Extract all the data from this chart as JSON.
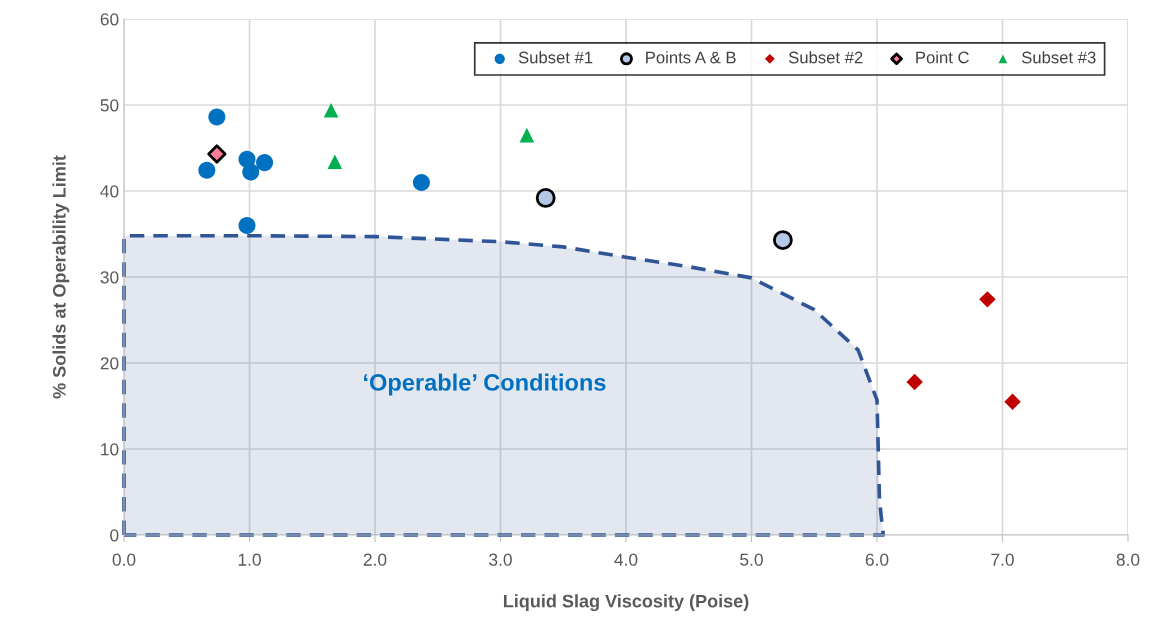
{
  "chart_data": {
    "type": "scatter",
    "xlabel": "Liquid Slag Viscosity (Poise)",
    "ylabel": "% Solids at Operability Limit",
    "xlim": [
      0,
      8
    ],
    "ylim": [
      0,
      60
    ],
    "xticks": [
      {
        "value": 0,
        "label": "0.0"
      },
      {
        "value": 1,
        "label": "1.0"
      },
      {
        "value": 2,
        "label": "2.0"
      },
      {
        "value": 3,
        "label": "3.0"
      },
      {
        "value": 4,
        "label": "4.0"
      },
      {
        "value": 5,
        "label": "5.0"
      },
      {
        "value": 6,
        "label": "6.0"
      },
      {
        "value": 7,
        "label": "7.0"
      },
      {
        "value": 8,
        "label": "8.0"
      }
    ],
    "yticks": [
      0,
      10,
      20,
      30,
      40,
      50,
      60
    ],
    "grid": true,
    "legend": "top right",
    "annotations": [
      "‘Operable’ Conditions"
    ],
    "series": [
      {
        "type": "area",
        "color": "#2f5597",
        "line_style": "dashed",
        "marker": "none",
        "x": [
          0,
          0,
          1,
          2,
          3,
          3.5,
          4,
          4.5,
          5,
          5.5,
          5.85,
          6,
          6.02,
          6.05
        ],
        "values": [
          0,
          34.8,
          34.8,
          34.7,
          34.1,
          33.5,
          32.3,
          31.2,
          29.9,
          26.2,
          21.5,
          15.7,
          4,
          0
        ]
      },
      {
        "name": "Subset #1",
        "color": "#0070c0",
        "marker": "circle",
        "x": [
          0.74,
          0.66,
          0.98,
          1.01,
          1.12,
          0.98,
          2.37
        ],
        "values": [
          48.6,
          42.4,
          43.7,
          42.2,
          43.3,
          36.0,
          41.0
        ]
      },
      {
        "name": "Points A & B",
        "color": "#b4c7e7",
        "marker": "circle",
        "x": [
          3.36,
          5.25
        ],
        "values": [
          39.2,
          34.3
        ]
      },
      {
        "name": "Subset #2",
        "color": "#c00000",
        "marker": "diamond",
        "x": [
          6.3,
          6.88,
          7.08
        ],
        "values": [
          17.8,
          27.4,
          15.5
        ]
      },
      {
        "name": "Point C",
        "color": "#ff7c99",
        "marker": "diamond",
        "x": [
          0.74
        ],
        "values": [
          44.3
        ]
      },
      {
        "name": "Subset #3",
        "color": "#00b050",
        "marker": "triangle",
        "x": [
          1.65,
          1.68,
          3.21
        ],
        "values": [
          49.4,
          43.4,
          46.5
        ]
      }
    ]
  }
}
